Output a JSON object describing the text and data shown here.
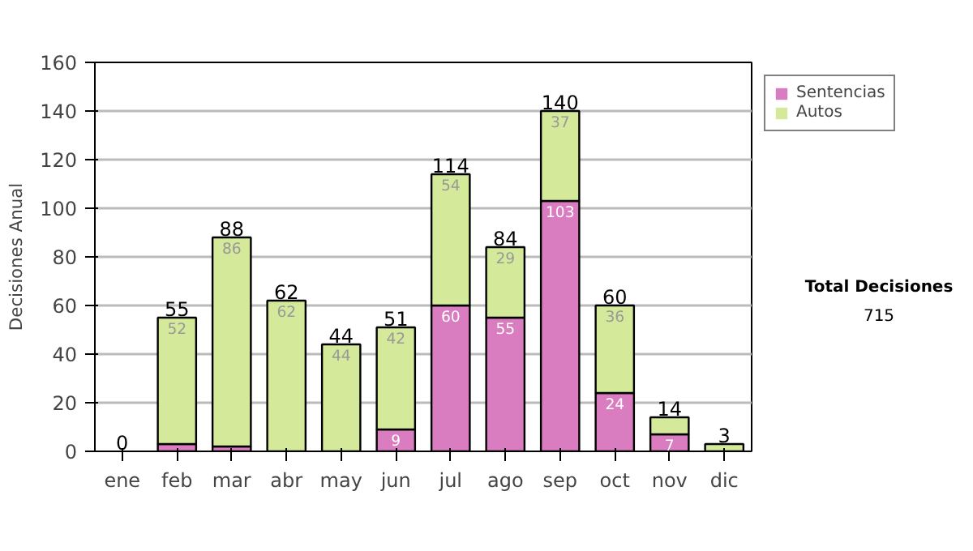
{
  "chart_data": {
    "type": "bar",
    "stacked": true,
    "ylabel": "Decisiones Anual",
    "categories": [
      "ene",
      "feb",
      "mar",
      "abr",
      "may",
      "jun",
      "jul",
      "ago",
      "sep",
      "oct",
      "nov",
      "dic"
    ],
    "series": [
      {
        "name": "Sentencias",
        "color": "#d97cc0",
        "values": [
          0,
          3,
          2,
          0,
          0,
          9,
          60,
          55,
          103,
          24,
          7,
          0
        ],
        "value_labels": [
          null,
          null,
          null,
          null,
          null,
          "9",
          "60",
          "55",
          "103",
          "24",
          "7",
          null
        ]
      },
      {
        "name": "Autos",
        "color": "#d4e99a",
        "values": [
          0,
          52,
          86,
          62,
          44,
          42,
          54,
          29,
          37,
          36,
          7,
          3
        ],
        "value_labels": [
          null,
          "52",
          "86",
          "62",
          "44",
          "42",
          "54",
          "29",
          "37",
          "36",
          null,
          null
        ]
      }
    ],
    "totals": [
      "0",
      "55",
      "88",
      "62",
      "44",
      "51",
      "114",
      "84",
      "140",
      "60",
      "14",
      "3"
    ],
    "ylim": [
      0,
      160
    ],
    "yticks": [
      0,
      20,
      40,
      60,
      80,
      100,
      120,
      140,
      160
    ],
    "grid": "y",
    "legend": "right",
    "annotations": [
      "Total Decisiones",
      "715"
    ]
  }
}
